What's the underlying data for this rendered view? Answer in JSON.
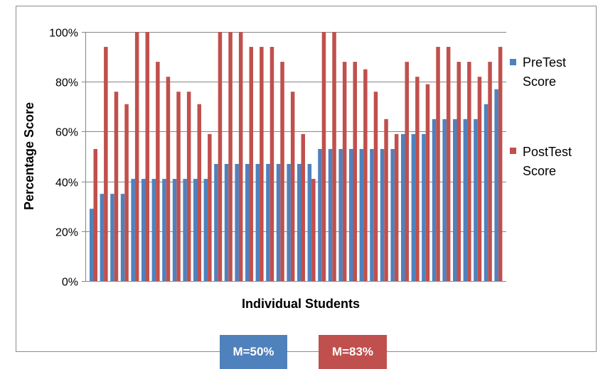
{
  "chart_data": {
    "type": "bar",
    "title": "",
    "xlabel": "Individual Students",
    "ylabel": "Percentage Score",
    "ylim": [
      0,
      100
    ],
    "yticks": [
      "0%",
      "20%",
      "40%",
      "60%",
      "80%",
      "100%"
    ],
    "grid": true,
    "legend_position": "right",
    "series": [
      {
        "name": "PreTest Score",
        "color": "#4F81BD",
        "values": [
          29,
          35,
          35,
          35,
          41,
          41,
          41,
          41,
          41,
          41,
          41,
          41,
          47,
          47,
          47,
          47,
          47,
          47,
          47,
          47,
          47,
          47,
          53,
          53,
          53,
          53,
          53,
          53,
          53,
          53,
          59,
          59,
          59,
          65,
          65,
          65,
          65,
          65,
          71,
          77
        ]
      },
      {
        "name": "PostTest Score",
        "color": "#C0504D",
        "values": [
          53,
          94,
          76,
          71,
          100,
          100,
          88,
          82,
          76,
          76,
          71,
          59,
          100,
          100,
          100,
          94,
          94,
          94,
          88,
          76,
          59,
          41,
          100,
          100,
          88,
          88,
          85,
          76,
          65,
          59,
          88,
          82,
          79,
          94,
          94,
          88,
          88,
          82,
          88,
          94
        ]
      }
    ]
  },
  "annotations": {
    "pre_mean": {
      "label": "M=50%",
      "color": "#4F81BD"
    },
    "post_mean": {
      "label": "M=83%",
      "color": "#C0504D"
    }
  }
}
